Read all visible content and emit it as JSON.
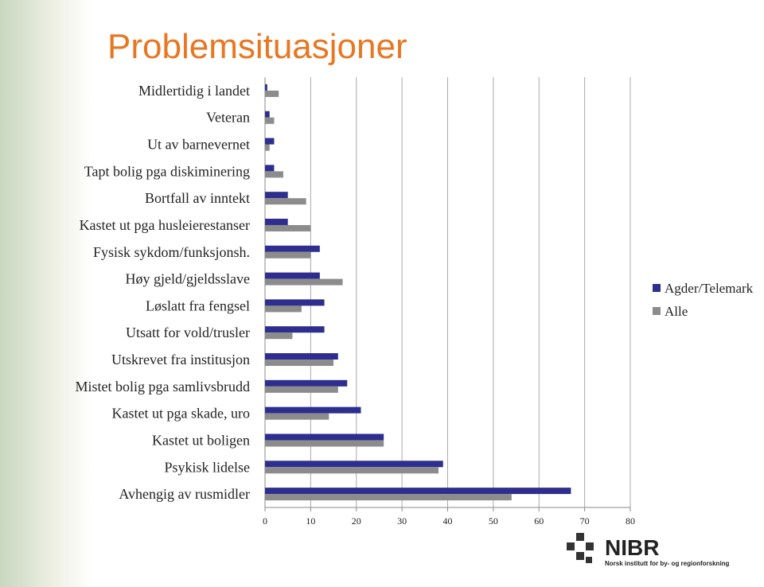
{
  "chart_data": {
    "type": "hbar",
    "title": "Problemsituasjoner",
    "categories": [
      "Midlertidig i landet",
      "Veteran",
      "Ut av barnevernet",
      "Tapt bolig pga diskiminering",
      "Bortfall av inntekt",
      "Kastet ut pga husleierestanser",
      "Fysisk sykdom/funksjonsh.",
      "Høy gjeld/gjeldsslave",
      "Løslatt fra fengsel",
      "Utsatt for vold/trusler",
      "Utskrevet fra institusjon",
      "Mistet bolig pga samlivsbrudd",
      "Kastet ut pga skade, uro",
      "Kastet ut boligen",
      "Psykisk lidelse",
      "Avhengig av rusmidler"
    ],
    "series": [
      {
        "name": "Agder/Telemark",
        "color": "#2e2e8f",
        "values": [
          0.5,
          1,
          2,
          2,
          5,
          5,
          12,
          12,
          13,
          13,
          16,
          18,
          21,
          26,
          39,
          67
        ]
      },
      {
        "name": "Alle",
        "color": "#8c8c8c",
        "values": [
          3,
          2,
          1,
          4,
          9,
          10,
          10,
          17,
          8,
          6,
          15,
          16,
          14,
          26,
          38,
          54
        ]
      }
    ],
    "xlim": [
      0,
      80
    ],
    "xticks": [
      0,
      10,
      20,
      30,
      40,
      50,
      60,
      70,
      80
    ],
    "grid": true,
    "legend": "right"
  },
  "logo": {
    "name": "NIBR",
    "tagline": "Norsk institutt for by- og regionforskning"
  }
}
